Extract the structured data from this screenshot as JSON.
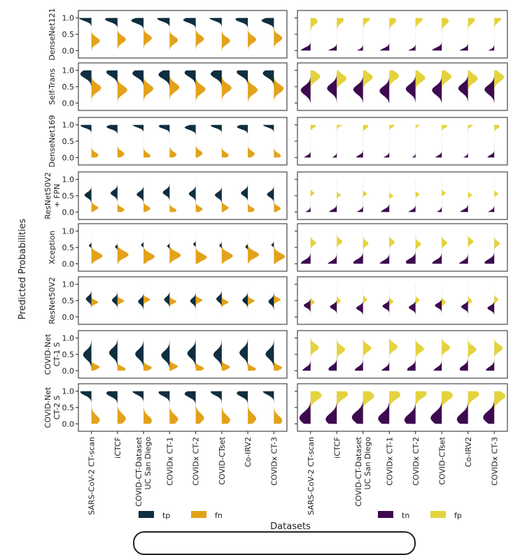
{
  "chart_data": {
    "type": "violin",
    "ylabel": "Predicted Probabilities",
    "xlabel": "Datasets",
    "ylim": [
      -0.1,
      1.1
    ],
    "yticks": [
      "0.0",
      "0.5",
      "1.0"
    ],
    "categories": [
      [
        "SARS-CoV-2 CT-scan"
      ],
      [
        "iCTCF"
      ],
      [
        "COVID-CT-Dataset",
        "UC San Diego"
      ],
      [
        "COVIDx CT-1"
      ],
      [
        "COVIDx CT-2"
      ],
      [
        "COVID-CTset"
      ],
      [
        "Co-IRV2"
      ],
      [
        "COVIDx CT-3"
      ]
    ],
    "rows": [
      [
        "DenseNet121"
      ],
      [
        "Self-Trans"
      ],
      [
        "DenseNet169"
      ],
      [
        "ResNet50V2",
        "+ FPN"
      ],
      [
        "Xception"
      ],
      [
        "ResNet50V2"
      ],
      [
        "COVID-Net",
        "CT-1 S"
      ],
      [
        "COVID-Net",
        "CT-2 S"
      ]
    ],
    "legend_left": [
      {
        "label": "tp",
        "color": "#0f2e3f"
      },
      {
        "label": "fn",
        "color": "#e3a21a"
      }
    ],
    "legend_right": [
      {
        "label": "tn",
        "color": "#3d0a4f"
      },
      {
        "label": "fp",
        "color": "#e4d33c"
      }
    ],
    "series_note_left": "positives: tp (left half) / fn (right half)",
    "series_note_right": "negatives: tn (left half) / fp (right half)",
    "grid": false
  }
}
